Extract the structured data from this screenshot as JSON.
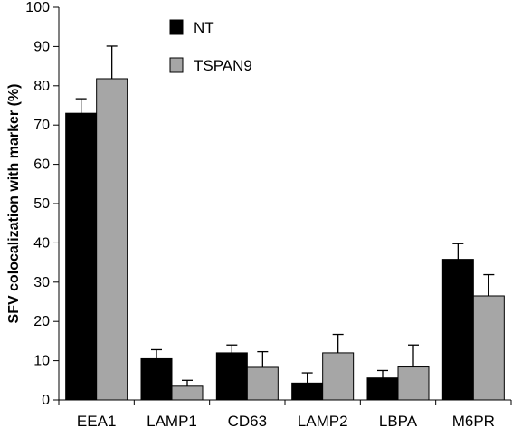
{
  "chart_data": {
    "type": "bar",
    "title": "",
    "xlabel": "",
    "ylabel": "SFV colocalization with marker (%)",
    "ylim": [
      0,
      100
    ],
    "yticks": [
      0,
      10,
      20,
      30,
      40,
      50,
      60,
      70,
      80,
      90,
      100
    ],
    "categories": [
      "EEA1",
      "LAMP1",
      "CD63",
      "LAMP2",
      "LBPA",
      "M6PR"
    ],
    "series": [
      {
        "name": "NT",
        "color": "#000000",
        "values": [
          73,
          10.5,
          12,
          4.3,
          5.6,
          35.8
        ],
        "errors": [
          3.7,
          2.3,
          2.0,
          2.6,
          1.9,
          4.0
        ]
      },
      {
        "name": "TSPAN9",
        "color": "#a6a6a6",
        "values": [
          81.8,
          3.5,
          8.3,
          12,
          8.4,
          26.5
        ],
        "errors": [
          8.3,
          1.5,
          4.0,
          4.7,
          5.6,
          5.4
        ]
      }
    ],
    "legend_position": "top-left",
    "grid": false
  }
}
